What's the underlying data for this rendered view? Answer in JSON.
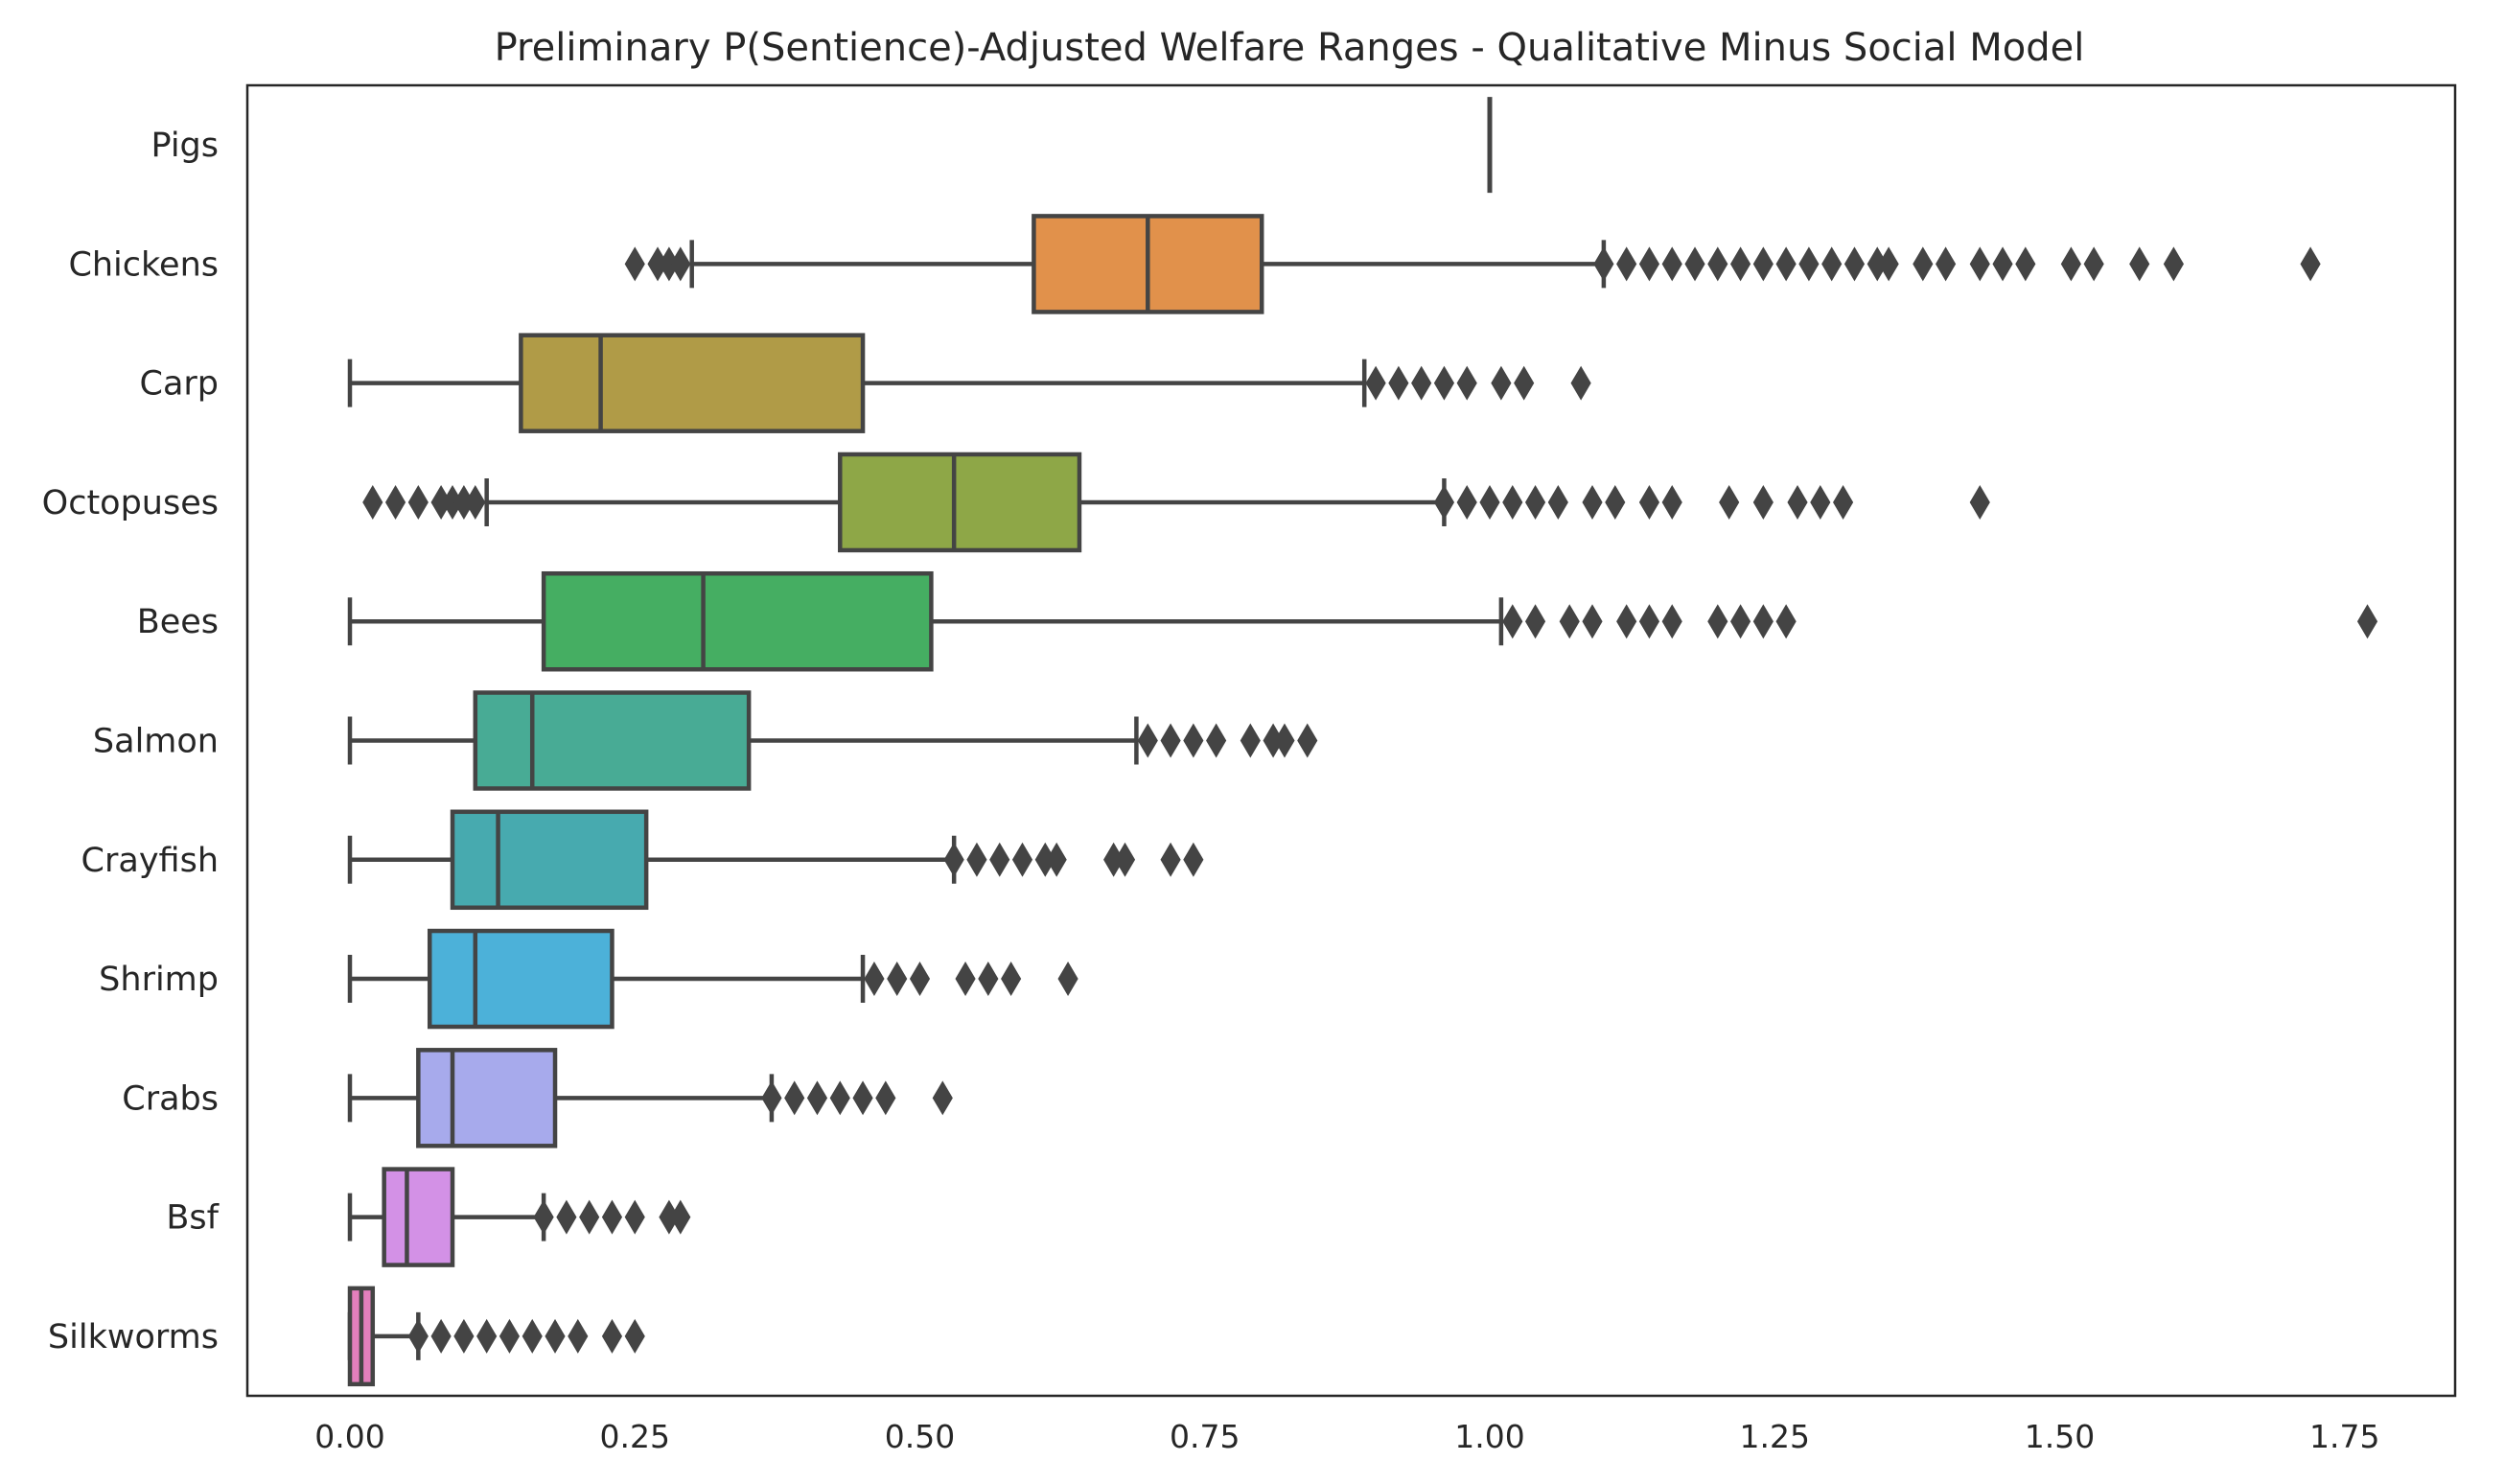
{
  "chart_data": {
    "type": "boxplot",
    "orientation": "horizontal",
    "title": "Preliminary P(Sentience)-Adjusted Welfare Ranges - Qualitative Minus Social Model",
    "xlabel": "",
    "ylabel": "",
    "xlim": [
      -0.09,
      1.85
    ],
    "xticks": [
      "0.00",
      "0.25",
      "0.50",
      "0.75",
      "1.00",
      "1.25",
      "1.50",
      "1.75"
    ],
    "grid": false,
    "legend": "none",
    "series": [
      {
        "category": "Pigs",
        "color": "#444444",
        "whisker_low": 1.0,
        "q1": 1.0,
        "median": 1.0,
        "q3": 1.0,
        "whisker_high": 1.0,
        "outliers": [
          1.0
        ]
      },
      {
        "category": "Chickens",
        "color": "#e1914b",
        "whisker_low": 0.3,
        "q1": 0.6,
        "median": 0.7,
        "q3": 0.8,
        "whisker_high": 1.1,
        "outliers": [
          0.25,
          0.27,
          0.28,
          0.29,
          1.1,
          1.12,
          1.14,
          1.16,
          1.18,
          1.2,
          1.22,
          1.24,
          1.26,
          1.28,
          1.3,
          1.32,
          1.34,
          1.35,
          1.38,
          1.4,
          1.43,
          1.45,
          1.47,
          1.51,
          1.53,
          1.57,
          1.6,
          1.72
        ]
      },
      {
        "category": "Carp",
        "color": "#b09b47",
        "whisker_low": 0.0,
        "q1": 0.15,
        "median": 0.22,
        "q3": 0.45,
        "whisker_high": 0.89,
        "outliers": [
          0.9,
          0.92,
          0.94,
          0.96,
          0.98,
          1.01,
          1.03,
          1.08
        ]
      },
      {
        "category": "Octopuses",
        "color": "#8ea747",
        "whisker_low": 0.12,
        "q1": 0.43,
        "median": 0.53,
        "q3": 0.64,
        "whisker_high": 0.96,
        "outliers": [
          0.02,
          0.04,
          0.06,
          0.08,
          0.09,
          0.1,
          0.11,
          0.96,
          0.98,
          1.0,
          1.02,
          1.04,
          1.06,
          1.09,
          1.11,
          1.14,
          1.16,
          1.21,
          1.24,
          1.27,
          1.29,
          1.31,
          1.43
        ]
      },
      {
        "category": "Bees",
        "color": "#45ae62",
        "whisker_low": 0.0,
        "q1": 0.17,
        "median": 0.31,
        "q3": 0.51,
        "whisker_high": 1.01,
        "outliers": [
          1.02,
          1.04,
          1.07,
          1.09,
          1.12,
          1.14,
          1.16,
          1.2,
          1.22,
          1.24,
          1.26,
          1.77
        ]
      },
      {
        "category": "Salmon",
        "color": "#48ab95",
        "whisker_low": 0.0,
        "q1": 0.11,
        "median": 0.16,
        "q3": 0.35,
        "whisker_high": 0.69,
        "outliers": [
          0.7,
          0.72,
          0.74,
          0.76,
          0.79,
          0.81,
          0.82,
          0.84
        ]
      },
      {
        "category": "Crayfish",
        "color": "#47aaaf",
        "whisker_low": 0.0,
        "q1": 0.09,
        "median": 0.13,
        "q3": 0.26,
        "whisker_high": 0.53,
        "outliers": [
          0.53,
          0.55,
          0.57,
          0.59,
          0.61,
          0.62,
          0.67,
          0.68,
          0.72,
          0.74
        ]
      },
      {
        "category": "Shrimp",
        "color": "#4cb1d9",
        "whisker_low": 0.0,
        "q1": 0.07,
        "median": 0.11,
        "q3": 0.23,
        "whisker_high": 0.45,
        "outliers": [
          0.46,
          0.48,
          0.5,
          0.54,
          0.56,
          0.58,
          0.63
        ]
      },
      {
        "category": "Crabs",
        "color": "#a7aaec",
        "whisker_low": 0.0,
        "q1": 0.06,
        "median": 0.09,
        "q3": 0.18,
        "whisker_high": 0.37,
        "outliers": [
          0.37,
          0.39,
          0.41,
          0.43,
          0.45,
          0.47,
          0.52
        ]
      },
      {
        "category": "Bsf",
        "color": "#d391e6",
        "whisker_low": 0.0,
        "q1": 0.03,
        "median": 0.05,
        "q3": 0.09,
        "whisker_high": 0.17,
        "outliers": [
          0.17,
          0.19,
          0.21,
          0.23,
          0.25,
          0.28,
          0.29
        ]
      },
      {
        "category": "Silkworms",
        "color": "#e37fbc",
        "whisker_low": 0.0,
        "q1": 0.0,
        "median": 0.01,
        "q3": 0.02,
        "whisker_high": 0.06,
        "outliers": [
          0.06,
          0.08,
          0.1,
          0.12,
          0.14,
          0.16,
          0.18,
          0.2,
          0.23,
          0.25
        ]
      }
    ]
  }
}
